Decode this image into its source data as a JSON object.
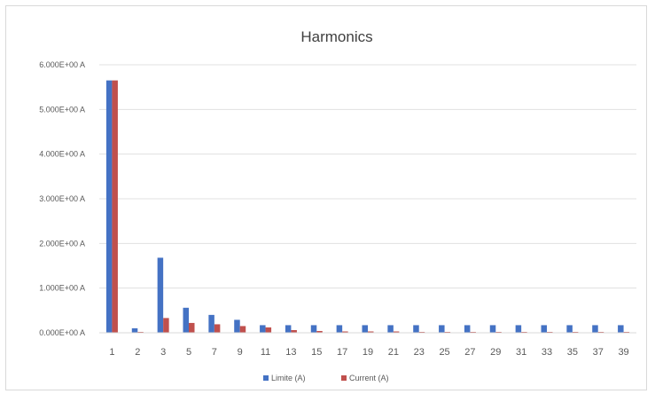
{
  "chart_data": {
    "type": "bar",
    "title": "Harmonics",
    "categories": [
      "1",
      "2",
      "3",
      "5",
      "7",
      "9",
      "11",
      "13",
      "15",
      "17",
      "19",
      "21",
      "23",
      "25",
      "27",
      "29",
      "31",
      "33",
      "35",
      "37",
      "39"
    ],
    "series": [
      {
        "name": "Limite (A)",
        "color": "#4472c4",
        "values": [
          5.65,
          0.1,
          1.68,
          0.56,
          0.4,
          0.29,
          0.17,
          0.17,
          0.17,
          0.17,
          0.17,
          0.17,
          0.17,
          0.17,
          0.17,
          0.17,
          0.17,
          0.17,
          0.17,
          0.17,
          0.17
        ]
      },
      {
        "name": "Current (A)",
        "color": "#c0504d",
        "values": [
          5.65,
          0.02,
          0.33,
          0.22,
          0.19,
          0.15,
          0.12,
          0.06,
          0.04,
          0.03,
          0.03,
          0.03,
          0.02,
          0.02,
          0.02,
          0.02,
          0.02,
          0.02,
          0.02,
          0.02,
          0.02
        ]
      }
    ],
    "yticks": [
      "0.000E+00 A",
      "1.000E+00 A",
      "2.000E+00 A",
      "3.000E+00 A",
      "4.000E+00 A",
      "5.000E+00 A",
      "6.000E+00 A"
    ],
    "ylim": [
      0,
      6
    ],
    "xlabel": "",
    "ylabel": "",
    "grid": true,
    "legend_position": "bottom"
  }
}
